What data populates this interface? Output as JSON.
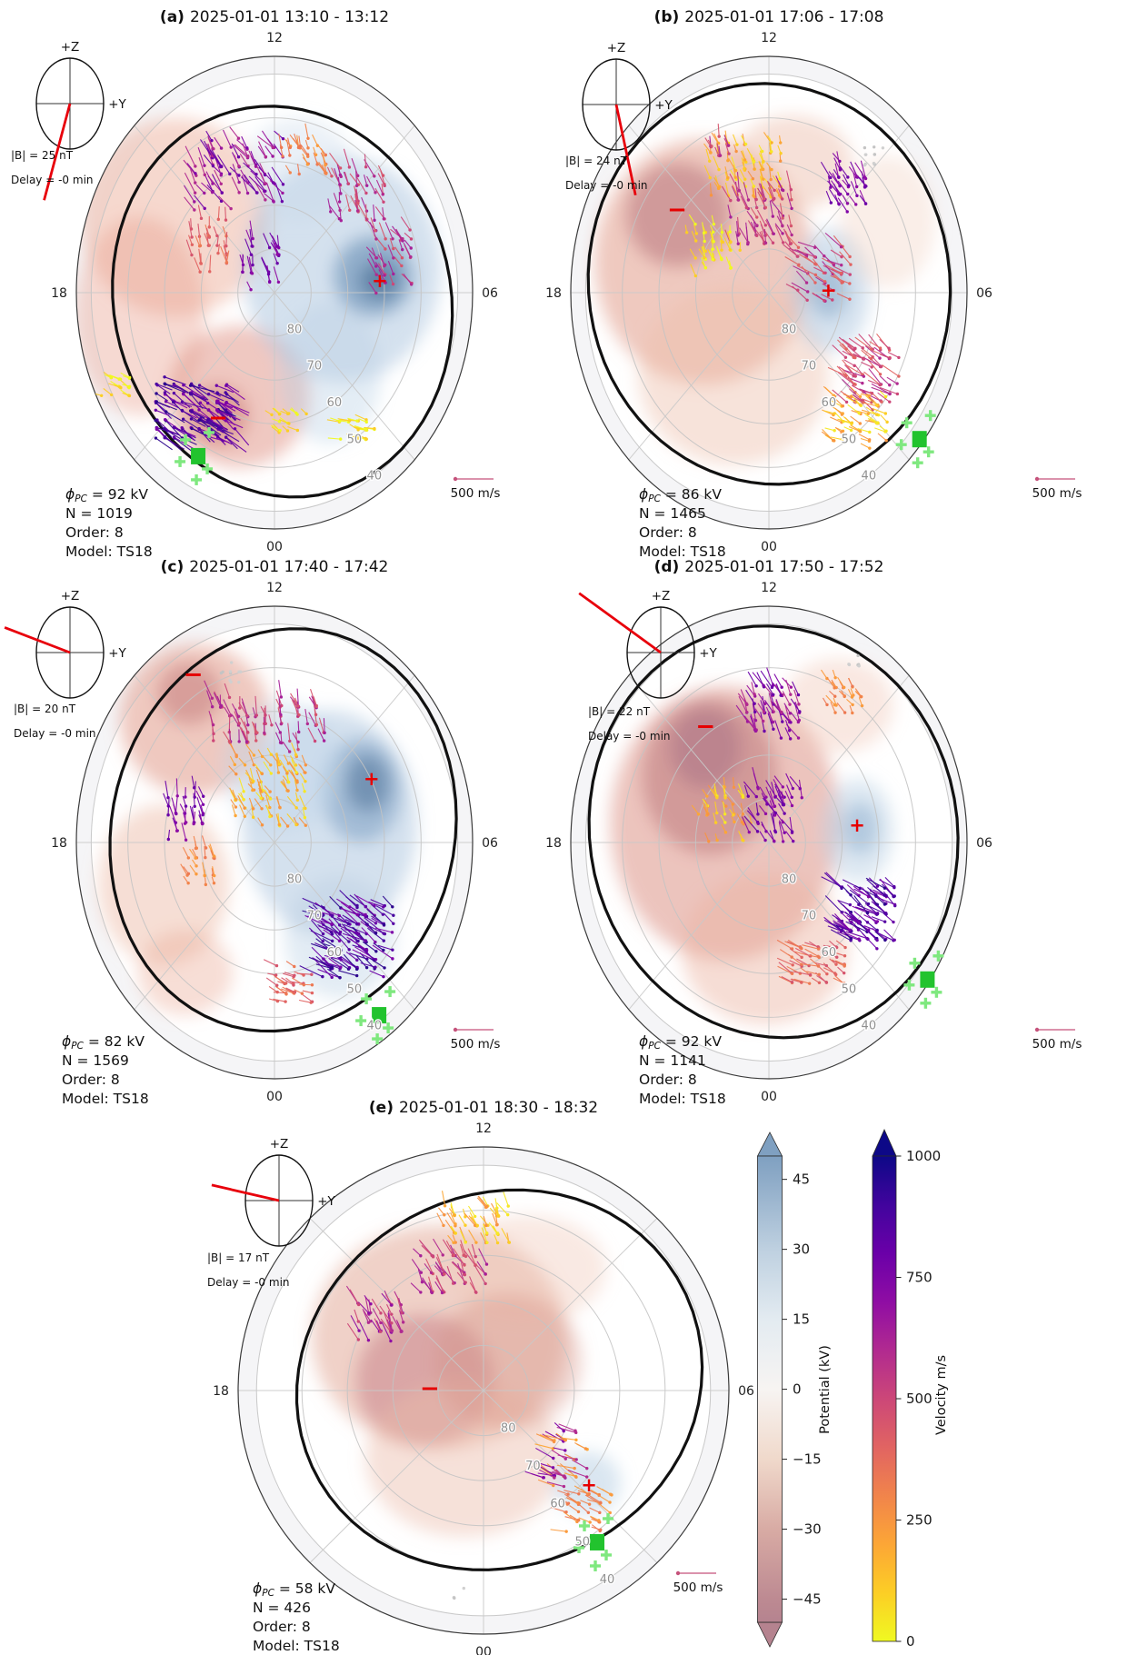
{
  "figure": {
    "panels": [
      {
        "id": "a",
        "label": "(a)",
        "time": "2025-01-01 13:10 - 13:12",
        "imf_b": "|B| = 25 nT",
        "delay": "Delay = -0 min",
        "phi_sym": "ϕ",
        "phi_sub": "PC",
        "phi_value": " = 92 kV",
        "n": "N = 1019",
        "order": "Order: 8",
        "model": "Model: TS18",
        "scale": "500 m/s",
        "plus": "+",
        "minus": "−"
      },
      {
        "id": "b",
        "label": "(b)",
        "time": "2025-01-01 17:06 - 17:08",
        "imf_b": "|B| = 24 nT",
        "delay": "Delay = -0 min",
        "phi_sym": "ϕ",
        "phi_sub": "PC",
        "phi_value": " = 86 kV",
        "n": "N = 1465",
        "order": "Order: 8",
        "model": "Model: TS18",
        "scale": "500 m/s",
        "plus": "+",
        "minus": "−"
      },
      {
        "id": "c",
        "label": "(c)",
        "time": "2025-01-01 17:40 - 17:42",
        "imf_b": "|B| = 20 nT",
        "delay": "Delay = -0 min",
        "phi_sym": "ϕ",
        "phi_sub": "PC",
        "phi_value": " = 82 kV",
        "n": "N = 1569",
        "order": "Order: 8",
        "model": "Model: TS18",
        "scale": "500 m/s",
        "plus": "+",
        "minus": "−"
      },
      {
        "id": "d",
        "label": "(d)",
        "time": "2025-01-01 17:50 - 17:52",
        "imf_b": "|B| = 22 nT",
        "delay": "Delay = -0 min",
        "phi_sym": "ϕ",
        "phi_sub": "PC",
        "phi_value": " = 92 kV",
        "n": "N = 1141",
        "order": "Order: 8",
        "model": "Model: TS18",
        "scale": "500 m/s",
        "plus": "+",
        "minus": "−"
      },
      {
        "id": "e",
        "label": "(e)",
        "time": "2025-01-01 18:30 - 18:32",
        "imf_b": "|B| = 17 nT",
        "delay": "Delay = -0 min",
        "phi_sym": "ϕ",
        "phi_sub": "PC",
        "phi_value": " = 58 kV",
        "n": "N = 426",
        "order": "Order: 8",
        "model": "Model: TS18",
        "scale": "500 m/s",
        "plus": "+",
        "minus": "−"
      }
    ],
    "polar": {
      "mlt_top": "12",
      "mlt_left": "18",
      "mlt_right": "06",
      "mlt_bottom": "00",
      "lat_labels": [
        "80",
        "70",
        "60",
        "50",
        "40"
      ]
    },
    "dial": {
      "z_label": "+Z",
      "y_label": "+Y"
    },
    "colorbars": {
      "potential": {
        "label": "Potential (kV)",
        "ticks": [
          "45",
          "30",
          "15",
          "0",
          "−15",
          "−30",
          "−45"
        ]
      },
      "velocity": {
        "label": "Velocity m/s",
        "ticks": [
          "1000",
          "750",
          "500",
          "250",
          "0"
        ]
      }
    }
  },
  "chart_data": {
    "type": "polar-convection-map-series",
    "description": "Five polar ionospheric convection maps (MLT dial, magnetic latitude rings 80-40) with fitted velocity vectors, electric potential shading, potential extrema (+/-), IMF clock-angle dial insets and two colorbars.",
    "panels": [
      {
        "panel": "a",
        "interval": "2025-01-01 13:10 - 13:12",
        "phi_pc_kV": 92,
        "n_vectors": 1019,
        "order": 8,
        "model": "TS18",
        "imf_b_nT": 25,
        "delay_label": "-0 min"
      },
      {
        "panel": "b",
        "interval": "2025-01-01 17:06 - 17:08",
        "phi_pc_kV": 86,
        "n_vectors": 1465,
        "order": 8,
        "model": "TS18",
        "imf_b_nT": 24,
        "delay_label": "-0 min"
      },
      {
        "panel": "c",
        "interval": "2025-01-01 17:40 - 17:42",
        "phi_pc_kV": 82,
        "n_vectors": 1569,
        "order": 8,
        "model": "TS18",
        "imf_b_nT": 20,
        "delay_label": "-0 min"
      },
      {
        "panel": "d",
        "interval": "2025-01-01 17:50 - 17:52",
        "phi_pc_kV": 92,
        "n_vectors": 1141,
        "order": 8,
        "model": "TS18",
        "imf_b_nT": 22,
        "delay_label": "-0 min"
      },
      {
        "panel": "e",
        "interval": "2025-01-01 18:30 - 18:32",
        "phi_pc_kV": 58,
        "n_vectors": 426,
        "order": 8,
        "model": "TS18",
        "imf_b_nT": 17,
        "delay_label": "-0 min"
      }
    ],
    "colorbars": [
      {
        "label": "Potential (kV)",
        "range": [
          -50,
          50
        ],
        "ticks": [
          45,
          30,
          15,
          0,
          -15,
          -30,
          -45
        ],
        "high_color": "#7fa0c1",
        "mid_color": "#f7f4f2",
        "low_color": "#b5838f"
      },
      {
        "label": "Velocity m/s",
        "range": [
          0,
          1000
        ],
        "ticks": [
          1000,
          750,
          500,
          250,
          0
        ],
        "high_color": "#0d0887",
        "low_color": "#f0f921"
      }
    ],
    "mlt_labels": [
      "12",
      "18",
      "06",
      "00"
    ],
    "lat_rings": [
      80,
      70,
      60,
      50,
      40
    ],
    "velocity_scale_m_s": 500
  }
}
